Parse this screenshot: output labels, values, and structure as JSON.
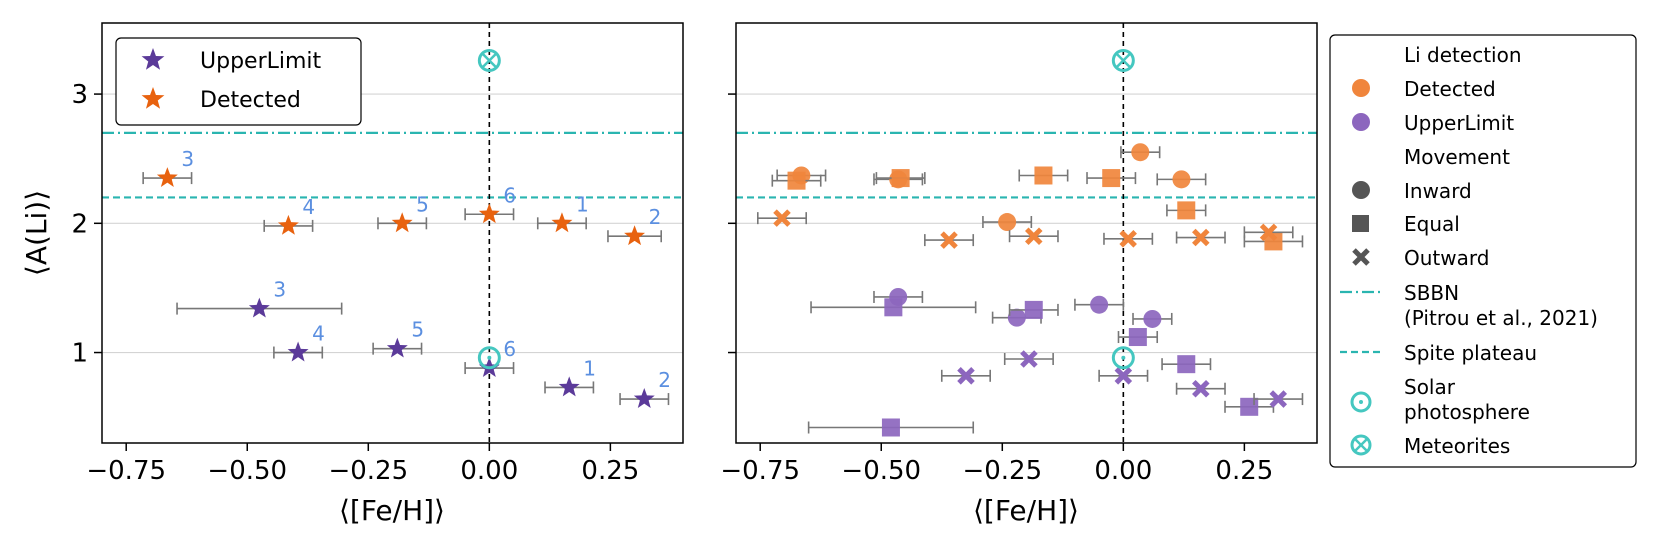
{
  "chart_data": [
    {
      "type": "scatter",
      "panel": "left",
      "xlabel": "⟨[Fe/H]⟩",
      "ylabel": "⟨A(Li)⟩",
      "xlim": [
        -0.8,
        0.4
      ],
      "ylim": [
        0.3,
        3.55
      ],
      "xticks": [
        -0.75,
        -0.5,
        -0.25,
        0.0,
        0.25
      ],
      "xtick_labels": [
        "−0.75",
        "−0.50",
        "−0.25",
        "0.00",
        "0.25"
      ],
      "yticks": [
        1,
        2,
        3
      ],
      "ytick_labels": [
        "1",
        "2",
        "3"
      ],
      "hlines": [
        {
          "name": "SBBN",
          "y": 2.7,
          "style": "dashdot",
          "color": "#2ab5b0"
        },
        {
          "name": "Spite plateau",
          "y": 2.2,
          "style": "dashed",
          "color": "#2ab5b0"
        }
      ],
      "vline_x": 0.0,
      "legend": {
        "position": "top-left",
        "entries": [
          {
            "label": "UpperLimit",
            "color": "#5b3a99"
          },
          {
            "label": "Detected",
            "color": "#e8620f"
          }
        ]
      },
      "series": [
        {
          "name": "Detected",
          "color": "#e8620f",
          "marker": "star",
          "points": [
            {
              "x": -0.665,
              "y": 2.35,
              "xerr": 0.05,
              "label": "3"
            },
            {
              "x": -0.415,
              "y": 1.98,
              "xerr": 0.05,
              "label": "4"
            },
            {
              "x": -0.18,
              "y": 2.0,
              "xerr": 0.05,
              "label": "5"
            },
            {
              "x": 0.0,
              "y": 2.07,
              "xerr": 0.05,
              "label": "6"
            },
            {
              "x": 0.15,
              "y": 2.0,
              "xerr": 0.05,
              "label": "1"
            },
            {
              "x": 0.3,
              "y": 1.9,
              "xerr": 0.055,
              "label": "2"
            }
          ]
        },
        {
          "name": "UpperLimit",
          "color": "#5b3a99",
          "marker": "star",
          "points": [
            {
              "x": -0.475,
              "y": 1.34,
              "xerr": 0.17,
              "label": "3"
            },
            {
              "x": -0.395,
              "y": 1.0,
              "xerr": 0.05,
              "label": "4"
            },
            {
              "x": -0.19,
              "y": 1.03,
              "xerr": 0.05,
              "label": "5"
            },
            {
              "x": 0.0,
              "y": 0.88,
              "xerr": 0.05,
              "label": "6"
            },
            {
              "x": 0.165,
              "y": 0.73,
              "xerr": 0.05,
              "label": "1"
            },
            {
              "x": 0.32,
              "y": 0.64,
              "xerr": 0.05,
              "label": "2"
            }
          ]
        }
      ],
      "references": [
        {
          "name": "Solar photosphere",
          "x": 0.0,
          "y": 0.96,
          "marker": "circle-dot"
        },
        {
          "name": "Meteorites",
          "x": 0.0,
          "y": 3.26,
          "marker": "circle-x"
        }
      ]
    },
    {
      "type": "scatter",
      "panel": "right",
      "xlabel": "⟨[Fe/H]⟩",
      "xlim": [
        -0.8,
        0.4
      ],
      "ylim": [
        0.3,
        3.55
      ],
      "xticks": [
        -0.75,
        -0.5,
        -0.25,
        0.0,
        0.25
      ],
      "xtick_labels": [
        "−0.75",
        "−0.50",
        "−0.25",
        "0.00",
        "0.25"
      ],
      "hlines": [
        {
          "name": "SBBN",
          "y": 2.7,
          "style": "dashdot",
          "color": "#2ab5b0"
        },
        {
          "name": "Spite plateau",
          "y": 2.2,
          "style": "dashed",
          "color": "#2ab5b0"
        }
      ],
      "vline_x": 0.0,
      "series": [
        {
          "name": "Detected-Inward",
          "color": "#f0853c",
          "marker": "circle",
          "points": [
            {
              "x": 0.035,
              "y": 2.55,
              "xerr": 0.04
            },
            {
              "x": -0.665,
              "y": 2.37,
              "xerr": 0.05
            },
            {
              "x": -0.465,
              "y": 2.34,
              "xerr": 0.05
            },
            {
              "x": 0.12,
              "y": 2.34,
              "xerr": 0.05
            },
            {
              "x": -0.24,
              "y": 2.01,
              "xerr": 0.05
            }
          ]
        },
        {
          "name": "Detected-Equal",
          "color": "#f0853c",
          "marker": "square",
          "points": [
            {
              "x": -0.675,
              "y": 2.33,
              "xerr": 0.05
            },
            {
              "x": -0.46,
              "y": 2.35,
              "xerr": 0.05
            },
            {
              "x": -0.165,
              "y": 2.37,
              "xerr": 0.05
            },
            {
              "x": -0.025,
              "y": 2.35,
              "xerr": 0.05
            },
            {
              "x": 0.13,
              "y": 2.1,
              "xerr": 0.04
            },
            {
              "x": 0.31,
              "y": 1.86,
              "xerr": 0.06
            }
          ]
        },
        {
          "name": "Detected-Outward",
          "color": "#f0853c",
          "marker": "x",
          "points": [
            {
              "x": -0.705,
              "y": 2.04,
              "xerr": 0.05
            },
            {
              "x": -0.36,
              "y": 1.87,
              "xerr": 0.05
            },
            {
              "x": -0.185,
              "y": 1.9,
              "xerr": 0.05
            },
            {
              "x": 0.01,
              "y": 1.88,
              "xerr": 0.05
            },
            {
              "x": 0.16,
              "y": 1.89,
              "xerr": 0.05
            },
            {
              "x": 0.3,
              "y": 1.93,
              "xerr": 0.05
            }
          ]
        },
        {
          "name": "UpperLimit-Inward",
          "color": "#8c66be",
          "marker": "circle",
          "points": [
            {
              "x": -0.465,
              "y": 1.43,
              "xerr": 0.05
            },
            {
              "x": -0.05,
              "y": 1.37,
              "xerr": 0.05
            },
            {
              "x": -0.22,
              "y": 1.27,
              "xerr": 0.05
            },
            {
              "x": 0.06,
              "y": 1.26,
              "xerr": 0.04
            }
          ]
        },
        {
          "name": "UpperLimit-Equal",
          "color": "#8c66be",
          "marker": "square",
          "points": [
            {
              "x": -0.475,
              "y": 1.35,
              "xerr": 0.17
            },
            {
              "x": -0.185,
              "y": 1.33,
              "xerr": 0.05
            },
            {
              "x": 0.03,
              "y": 1.12,
              "xerr": 0.04
            },
            {
              "x": 0.13,
              "y": 0.91,
              "xerr": 0.05
            },
            {
              "x": 0.26,
              "y": 0.58,
              "xerr": 0.05
            },
            {
              "x": -0.48,
              "y": 0.42,
              "xerr": 0.17
            }
          ]
        },
        {
          "name": "UpperLimit-Outward",
          "color": "#8c66be",
          "marker": "x",
          "points": [
            {
              "x": -0.325,
              "y": 0.82,
              "xerr": 0.05
            },
            {
              "x": -0.195,
              "y": 0.95,
              "xerr": 0.05
            },
            {
              "x": 0.0,
              "y": 0.82,
              "xerr": 0.05
            },
            {
              "x": 0.16,
              "y": 0.72,
              "xerr": 0.05
            },
            {
              "x": 0.32,
              "y": 0.64,
              "xerr": 0.05
            }
          ]
        }
      ],
      "references": [
        {
          "name": "Solar photosphere",
          "x": 0.0,
          "y": 0.96,
          "marker": "circle-dot"
        },
        {
          "name": "Meteorites",
          "x": 0.0,
          "y": 3.26,
          "marker": "circle-x"
        }
      ]
    }
  ],
  "right_legend": {
    "title_li": "Li detection",
    "detected": "Detected",
    "upperlimit": "UpperLimit",
    "title_movement": "Movement",
    "inward": "Inward",
    "equal": "Equal",
    "outward": "Outward",
    "sbbn_line1": "SBBN",
    "sbbn_line2": "(Pitrou et al., 2021)",
    "spite": "Spite plateau",
    "solar_line1": "Solar",
    "solar_line2": "photosphere",
    "meteorites": "Meteorites"
  },
  "colors": {
    "detected_star": "#e8620f",
    "upper_star": "#5b3a99",
    "detected_marker": "#f0853c",
    "upper_marker": "#8c66be",
    "reference_lines": "#2ab5b0",
    "errorbar": "#777777",
    "num_labels": "#5b8fe0"
  }
}
